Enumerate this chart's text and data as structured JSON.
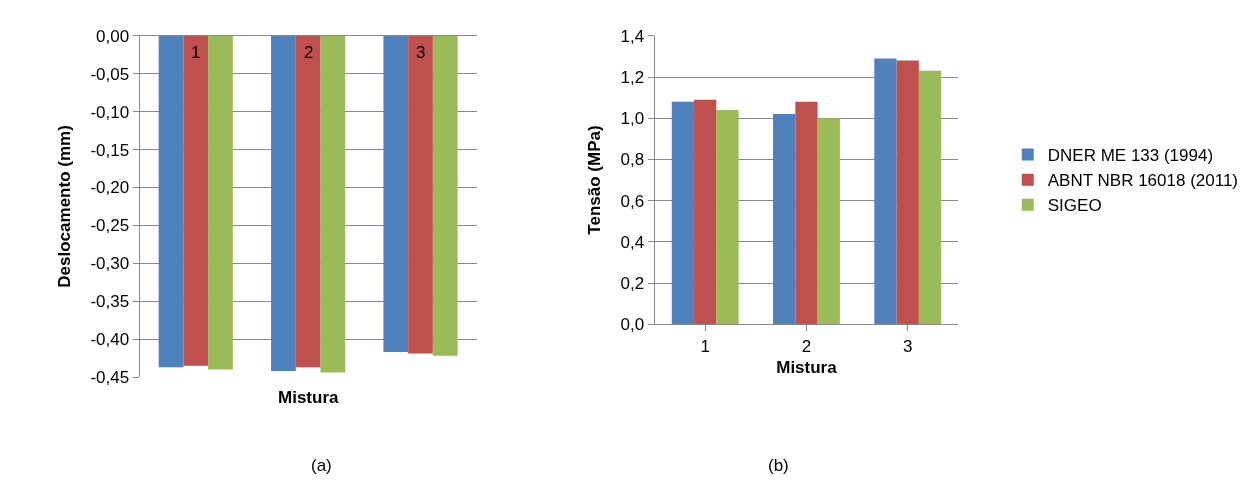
{
  "chart_data": [
    {
      "type": "bar",
      "xlabel": "Mistura",
      "ylabel": "Deslocamento (mm)",
      "categories": [
        "1",
        "2",
        "3"
      ],
      "series": [
        {
          "color": "#4f81bd",
          "values": [
            -0.437,
            -0.442,
            -0.417
          ]
        },
        {
          "color": "#c0504d",
          "values": [
            -0.435,
            -0.437,
            -0.419
          ]
        },
        {
          "color": "#9bbb59",
          "values": [
            -0.44,
            -0.444,
            -0.422
          ]
        }
      ],
      "ylim": [
        -0.45,
        0
      ],
      "yticks": [
        {
          "value": -0.45,
          "label": "-0,45"
        },
        {
          "value": -0.4,
          "label": "-0,40"
        },
        {
          "value": -0.35,
          "label": "-0,35"
        },
        {
          "value": -0.3,
          "label": "-0,30"
        },
        {
          "value": -0.25,
          "label": "-0,25"
        },
        {
          "value": -0.2,
          "label": "-0,20"
        },
        {
          "value": -0.15,
          "label": "-0,15"
        },
        {
          "value": -0.1,
          "label": "-0,10"
        },
        {
          "value": -0.05,
          "label": "-0,05"
        },
        {
          "value": 0,
          "label": "0,00"
        }
      ],
      "grid": "y",
      "legend": false,
      "annotations": [
        "(a)"
      ]
    },
    {
      "type": "bar",
      "xlabel": "Mistura",
      "ylabel": "Tensão (MPa)",
      "categories": [
        "1",
        "2",
        "3"
      ],
      "series": [
        {
          "name": "DNER ME 133 (1994)",
          "color": "#4f81bd",
          "values": [
            1.08,
            1.02,
            1.29
          ]
        },
        {
          "name": "ABNT NBR 16018 (2011)",
          "color": "#c0504d",
          "values": [
            1.09,
            1.08,
            1.28
          ]
        },
        {
          "name": "SIGEO",
          "color": "#9bbb59",
          "values": [
            1.04,
            1.0,
            1.23
          ]
        }
      ],
      "ylim": [
        0,
        1.4
      ],
      "yticks": [
        {
          "value": 0,
          "label": "0,0"
        },
        {
          "value": 0.2,
          "label": "0,2"
        },
        {
          "value": 0.4,
          "label": "0,4"
        },
        {
          "value": 0.6,
          "label": "0,6"
        },
        {
          "value": 0.8,
          "label": "0,8"
        },
        {
          "value": 1.0,
          "label": "1,0"
        },
        {
          "value": 1.2,
          "label": "1,2"
        },
        {
          "value": 1.4,
          "label": "1,4"
        }
      ],
      "grid": "y",
      "legend": "right",
      "annotations": [
        "(b)"
      ]
    }
  ]
}
